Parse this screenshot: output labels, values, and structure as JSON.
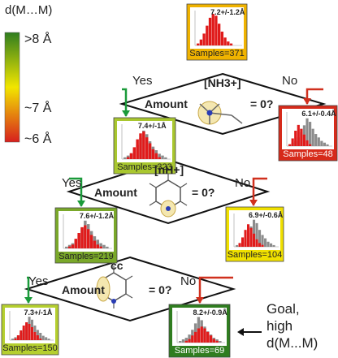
{
  "legend": {
    "title": "d(M…M)",
    "high": ">8 Å",
    "mid": "~7 Å",
    "low": "~6 Å",
    "colors": {
      "high": "#2f7d1f",
      "mid": "#f2e600",
      "low": "#d7201e"
    }
  },
  "nodes": [
    {
      "samples": "Samples=371",
      "stat": "7.2+/-1.2Å",
      "color": "#f0b300"
    },
    {
      "samples": "Samples=323",
      "stat": "7.4+/-1Å",
      "color": "#a9c72f"
    },
    {
      "samples": "Samples=48",
      "stat": "6.1+/-0.4Å",
      "color": "#d62a1a"
    },
    {
      "samples": "Samples=219",
      "stat": "7.6+/-1.2Å",
      "color": "#7aa82a"
    },
    {
      "samples": "Samples=104",
      "stat": "6.9+/-0.6Å",
      "color": "#f0e000"
    },
    {
      "samples": "Samples=150",
      "stat": "7.3+/-1Å",
      "color": "#b5cf2f"
    },
    {
      "samples": "Samples=69",
      "stat": "8.2+/-0.9Å",
      "color": "#2f7d1f"
    }
  ],
  "decisions": [
    {
      "feature": "[NH3+]",
      "amount": "Amount",
      "test": "= 0?"
    },
    {
      "feature": "[nH+]",
      "amount": "Amount",
      "test": "= 0?"
    },
    {
      "feature": "cc",
      "amount": "Amount",
      "test": "= 0?"
    }
  ],
  "branches": {
    "yes": "Yes",
    "no": "No"
  },
  "goal": {
    "line1": "Goal,",
    "line2": "high",
    "line3": "d(M...M)"
  },
  "arrow_colors": {
    "yes": "#1a9a3a",
    "no": "#d0301e"
  }
}
